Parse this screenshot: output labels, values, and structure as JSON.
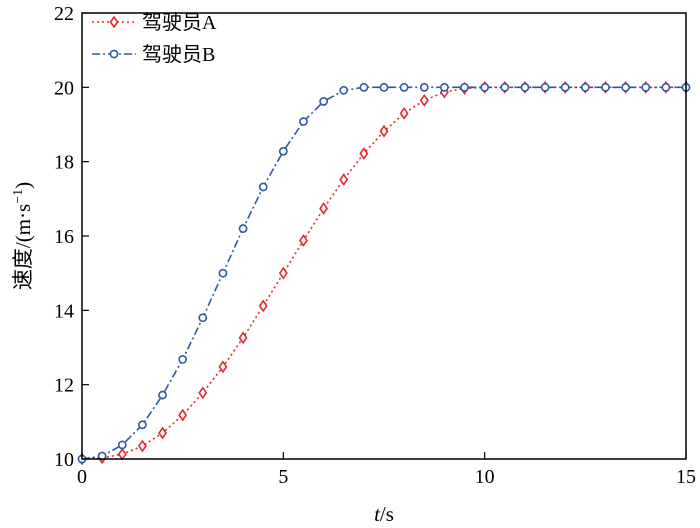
{
  "chart_data": {
    "type": "line",
    "xlabel_var": "t",
    "xlabel_unit": "/s",
    "ylabel": "速度/(m·s",
    "ylabel_sup": "−1",
    "ylabel_close": ")",
    "xlim": [
      0,
      15
    ],
    "ylim": [
      10,
      22
    ],
    "xticks": [
      0,
      5,
      10,
      15
    ],
    "yticks": [
      10,
      12,
      14,
      16,
      18,
      20,
      22
    ],
    "grid": false,
    "legend_position": "top-left",
    "x": [
      0,
      0.5,
      1,
      1.5,
      2,
      2.5,
      3,
      3.5,
      4,
      4.5,
      5,
      5.5,
      6,
      6.5,
      7,
      7.5,
      8,
      8.5,
      9,
      9.5,
      10,
      10.5,
      11,
      11.5,
      12,
      12.5,
      13,
      13.5,
      14,
      14.5,
      15
    ],
    "series": [
      {
        "name": "驾驶员A",
        "color": "#e8262d",
        "marker": "diamond",
        "line_style": "dotted",
        "values": [
          10,
          10.03,
          10.13,
          10.35,
          10.7,
          11.18,
          11.78,
          12.48,
          13.26,
          14.12,
          15.0,
          15.88,
          16.74,
          17.52,
          18.22,
          18.82,
          19.3,
          19.65,
          19.87,
          19.97,
          20,
          20,
          20,
          20,
          20,
          20,
          20,
          20,
          20,
          20,
          20
        ]
      },
      {
        "name": "驾驶员B",
        "color": "#2b5aa2",
        "marker": "circle",
        "line_style": "dash-dot",
        "values": [
          10,
          10.08,
          10.38,
          10.92,
          11.72,
          12.68,
          13.8,
          15.0,
          16.2,
          17.32,
          18.28,
          19.08,
          19.62,
          19.92,
          20,
          20,
          20,
          20,
          20,
          20,
          20,
          20,
          20,
          20,
          20,
          20,
          20,
          20,
          20,
          20,
          20
        ]
      }
    ]
  }
}
